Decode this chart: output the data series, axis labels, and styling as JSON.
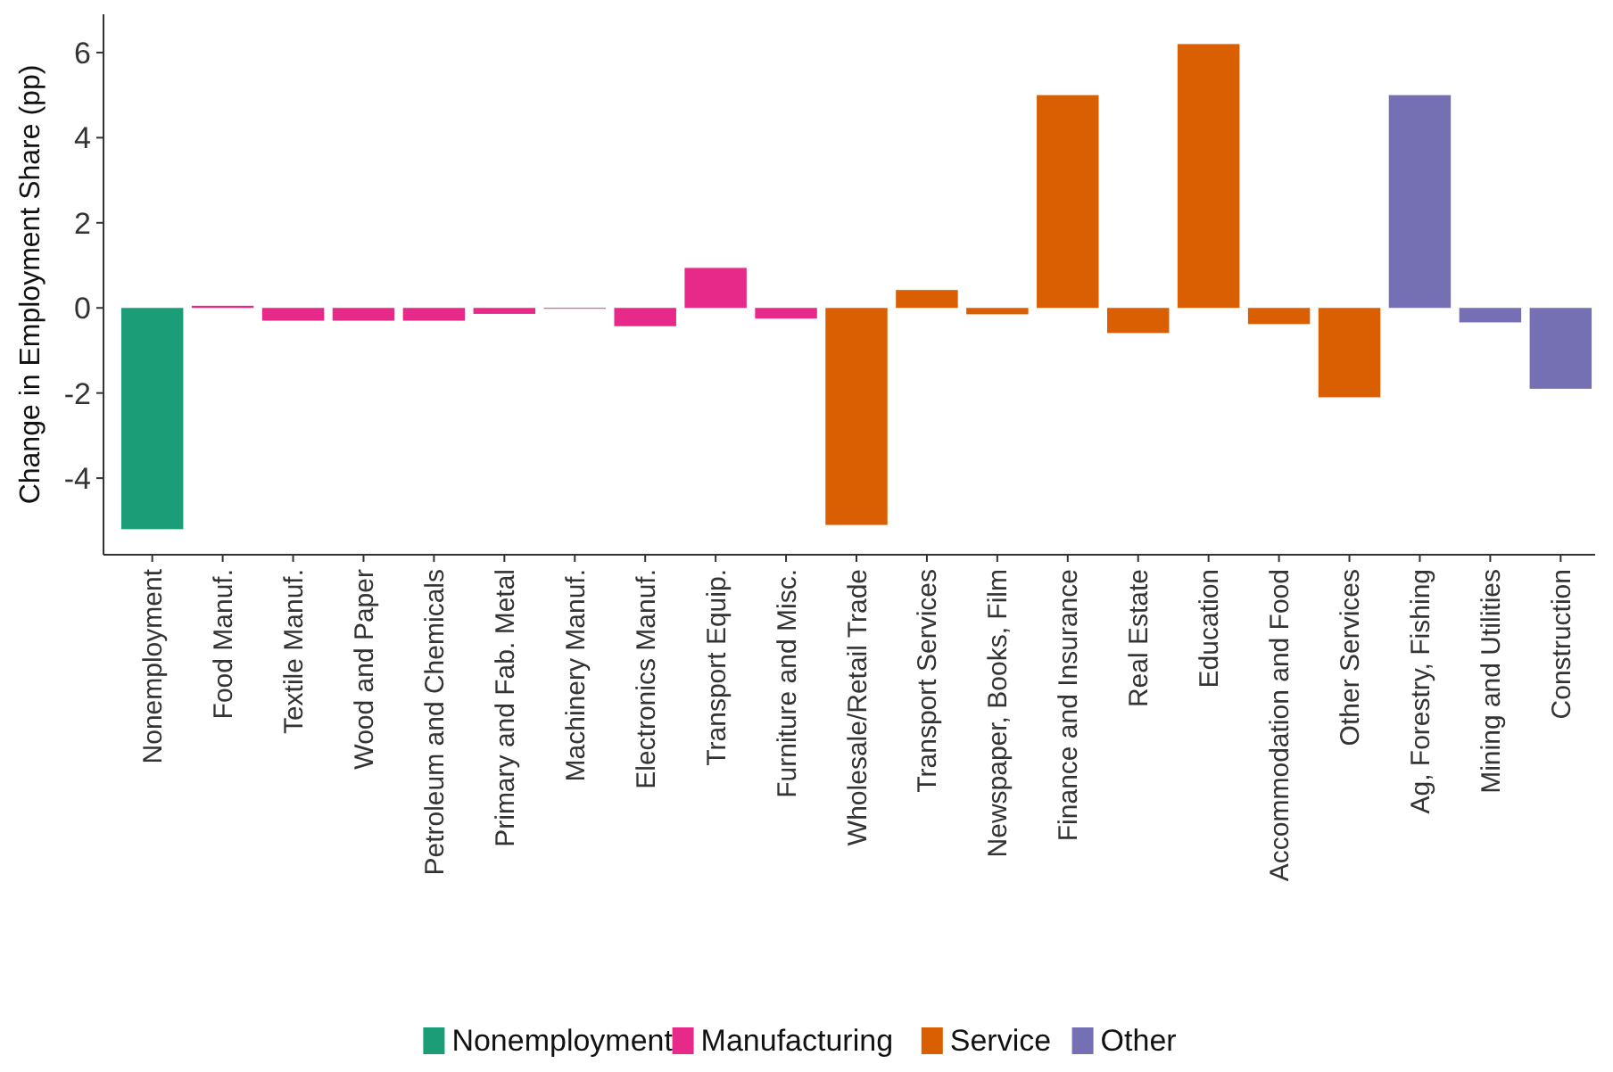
{
  "chart_data": {
    "type": "bar",
    "ylabel": "Change in Employment Share (pp)",
    "categories": [
      "Nonemployment",
      "Food Manuf.",
      "Textile Manuf.",
      "Wood and Paper",
      "Petroleum and Chemicals",
      "Primary and Fab. Metal",
      "Machinery Manuf.",
      "Electronics Manuf.",
      "Transport Equip.",
      "Furniture and Misc.",
      "Wholesale/Retail Trade",
      "Transport Services",
      "Newspaper, Books, Film",
      "Finance and Insurance",
      "Real Estate",
      "Education",
      "Accommodation and Food",
      "Other Services",
      "Ag, Forestry, Fishing",
      "Mining and Utilities",
      "Construction"
    ],
    "series": [
      {
        "name": "Nonemployment",
        "color": "#1b9e77",
        "values": [
          -5.2,
          null,
          null,
          null,
          null,
          null,
          null,
          null,
          null,
          null,
          null,
          null,
          null,
          null,
          null,
          null,
          null,
          null,
          null,
          null,
          null
        ]
      },
      {
        "name": "Manufacturing",
        "color": "#e7298a",
        "values": [
          null,
          0.05,
          -0.3,
          -0.3,
          -0.3,
          -0.14,
          -0.02,
          -0.43,
          0.94,
          -0.25,
          null,
          null,
          null,
          null,
          null,
          null,
          null,
          null,
          null,
          null,
          null
        ]
      },
      {
        "name": "Service",
        "color": "#d95f02",
        "values": [
          null,
          null,
          null,
          null,
          null,
          null,
          null,
          null,
          null,
          null,
          -5.1,
          0.42,
          -0.15,
          5.0,
          -0.59,
          6.2,
          -0.38,
          -2.1,
          null,
          null,
          null
        ]
      },
      {
        "name": "Other",
        "color": "#7570b3",
        "values": [
          null,
          null,
          null,
          null,
          null,
          null,
          null,
          null,
          null,
          null,
          null,
          null,
          null,
          null,
          null,
          null,
          null,
          null,
          5.0,
          -0.34,
          -1.9
        ]
      }
    ],
    "ylim": [
      -5.8,
      6.9
    ],
    "yticks": [
      -4,
      -2,
      0,
      2,
      4,
      6
    ],
    "legend": "bottom"
  }
}
